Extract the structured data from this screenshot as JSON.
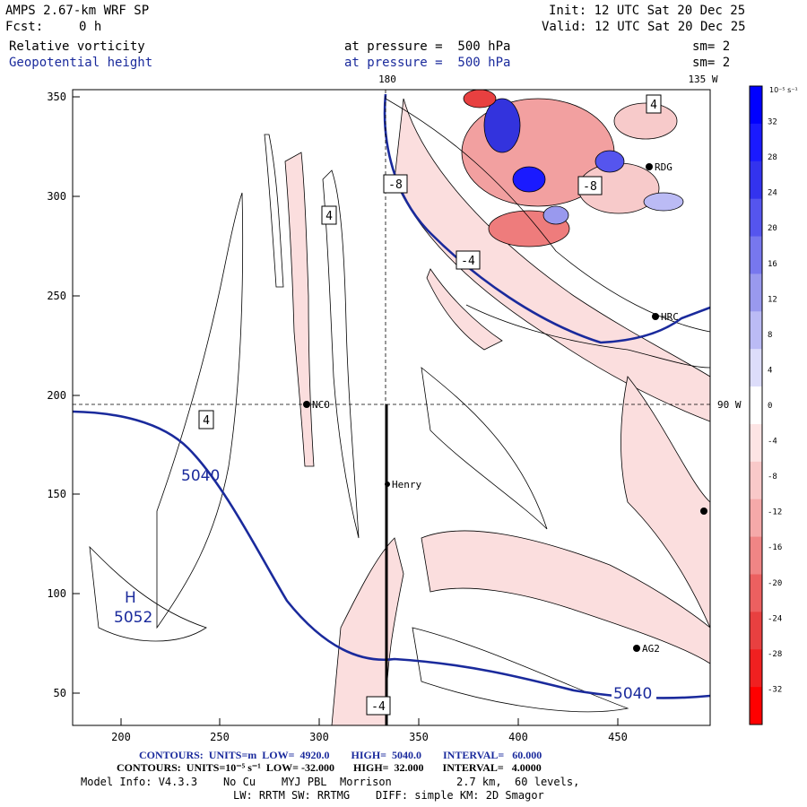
{
  "header": {
    "model": "AMPS 2.67-km WRF SP",
    "fcst_label": "Fcst:",
    "fcst_value": "0 h",
    "init": "Init: 12 UTC Sat 20 Dec 25",
    "valid": "Valid: 12 UTC Sat 20 Dec 25",
    "field1": "Relative vorticity",
    "field1_level": "at pressure =  500 hPa",
    "field1_sm": "sm= 2",
    "field2": "Geopotential height",
    "field2_level": "at pressure =  500 hPa",
    "field2_sm": "sm= 2"
  },
  "map": {
    "lon_180": "180",
    "lon_135w": "135 W",
    "lat_90w": "90 W",
    "x_ticks": [
      "200",
      "250",
      "300",
      "350",
      "400",
      "450"
    ],
    "y_ticks": [
      "350",
      "300",
      "250",
      "200",
      "150",
      "100",
      "50"
    ],
    "stations": [
      "RDG",
      "HRC",
      "NCO",
      "Henry",
      "AG2"
    ],
    "labels": {
      "l_4a": "4",
      "l_4b": "4",
      "l_4c": "4",
      "l_m8a": "-8",
      "l_m8b": "-8",
      "l_m4a": "-4",
      "l_m4b": "-4",
      "h_5040a": "5040",
      "h_5040b": "5040",
      "high_H": "H",
      "high_val": "5052"
    }
  },
  "colorbar": {
    "units": "10⁻⁵ s⁻¹",
    "ticks": [
      "32",
      "28",
      "24",
      "20",
      "16",
      "12",
      "8",
      "4",
      "0",
      "-4",
      "-8",
      "-12",
      "-16",
      "-20",
      "-24",
      "-28",
      "-32"
    ],
    "colors": [
      "#0000ff",
      "#1a1aff",
      "#3333ee",
      "#5555ee",
      "#7777ee",
      "#9999ee",
      "#bbbbf5",
      "#ddddfa",
      "#ffffff",
      "#fde4e4",
      "#f9c9c9",
      "#f5a9a9",
      "#f08585",
      "#ec6060",
      "#e84040",
      "#f02020",
      "#ff0000"
    ]
  },
  "footer": {
    "line1": "CONTOURS:  UNITS=m  LOW=  4920.0        HIGH=  5040.0        INTERVAL=   60.000",
    "line2": "CONTOURS:  UNITS=10⁻⁵ s⁻¹  LOW= -32.000       HIGH=  32.000       INTERVAL=   4.0000",
    "line3": "Model Info: V4.3.3    No Cu    MYJ PBL  Morrison          2.7 km,  60 levels,",
    "line4": "LW: RRTM SW: RRTMG    DIFF: simple KM: 2D Smagor"
  }
}
